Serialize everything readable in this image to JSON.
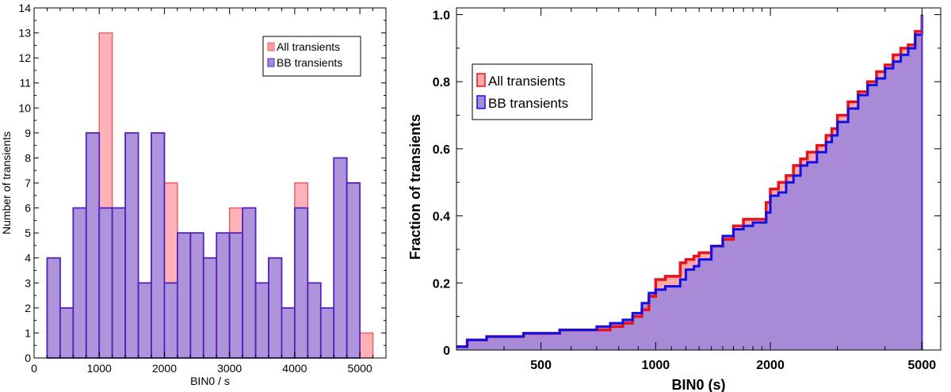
{
  "chart_data": [
    {
      "type": "bar",
      "title": "",
      "xlabel": "BIN0 / s",
      "ylabel": "Number of transients",
      "xlim": [
        0,
        5400
      ],
      "ylim": [
        0,
        14
      ],
      "bin_width": 200,
      "bin_starts": [
        200,
        400,
        600,
        800,
        1000,
        1200,
        1400,
        1600,
        1800,
        2000,
        2200,
        2400,
        2600,
        2800,
        3000,
        3200,
        3400,
        3600,
        3800,
        4000,
        4200,
        4400,
        4600,
        4800,
        5000
      ],
      "x_ticks": [
        "0",
        "1000",
        "2000",
        "3000",
        "4000",
        "5000"
      ],
      "y_ticks": [
        "0",
        "1",
        "2",
        "3",
        "4",
        "5",
        "6",
        "7",
        "8",
        "9",
        "10",
        "11",
        "12",
        "13",
        "14"
      ],
      "legend_position": "top-right",
      "series": [
        {
          "name": "All transients",
          "color": "#ff9aa2",
          "edge": "#ee6066",
          "values": [
            4,
            2,
            6,
            9,
            13,
            6,
            9,
            3,
            9,
            7,
            5,
            5,
            4,
            5,
            6,
            6,
            3,
            4,
            2,
            7,
            3,
            2,
            8,
            7,
            1
          ]
        },
        {
          "name": "BB transients",
          "color": "#9f8ee0",
          "edge": "#5522bb",
          "values": [
            4,
            2,
            6,
            9,
            6,
            6,
            9,
            3,
            9,
            3,
            5,
            5,
            4,
            5,
            5,
            6,
            3,
            4,
            2,
            6,
            3,
            2,
            8,
            7,
            0
          ]
        }
      ]
    },
    {
      "type": "line",
      "title": "",
      "xlabel": "BIN0 (s)",
      "ylabel": "Fraction of transients",
      "xscale": "log",
      "xlim": [
        300,
        5600
      ],
      "ylim": [
        0,
        1.02
      ],
      "x_ticks": [
        "500",
        "1000",
        "2000",
        "5000"
      ],
      "y_ticks": [
        "0",
        "0.2",
        "0.4",
        "0.6",
        "0.8",
        "1.0"
      ],
      "legend_position": "top-left",
      "series": [
        {
          "name": "All transients",
          "color": "#e8121a",
          "fill": "#ffaaaa",
          "x": [
            300,
            320,
            360,
            400,
            450,
            500,
            560,
            620,
            700,
            760,
            820,
            870,
            920,
            960,
            1000,
            1060,
            1100,
            1160,
            1200,
            1260,
            1300,
            1400,
            1500,
            1600,
            1700,
            1800,
            1900,
            1950,
            2000,
            2100,
            2200,
            2300,
            2400,
            2500,
            2650,
            2800,
            2900,
            3000,
            3200,
            3400,
            3600,
            3800,
            4000,
            4200,
            4400,
            4600,
            4800,
            5000
          ],
          "y": [
            0.01,
            0.03,
            0.04,
            0.04,
            0.05,
            0.05,
            0.06,
            0.06,
            0.06,
            0.07,
            0.08,
            0.1,
            0.12,
            0.16,
            0.21,
            0.22,
            0.22,
            0.26,
            0.27,
            0.28,
            0.29,
            0.31,
            0.33,
            0.37,
            0.39,
            0.39,
            0.39,
            0.44,
            0.48,
            0.5,
            0.52,
            0.55,
            0.57,
            0.59,
            0.61,
            0.64,
            0.66,
            0.7,
            0.74,
            0.77,
            0.8,
            0.83,
            0.85,
            0.88,
            0.9,
            0.91,
            0.95,
            1.0
          ]
        },
        {
          "name": "BB transients",
          "color": "#1010e6",
          "fill": "#a98ad6",
          "x": [
            300,
            320,
            360,
            400,
            450,
            500,
            560,
            620,
            700,
            760,
            820,
            870,
            920,
            960,
            1000,
            1060,
            1100,
            1160,
            1200,
            1260,
            1300,
            1400,
            1500,
            1600,
            1700,
            1800,
            1900,
            1950,
            2000,
            2100,
            2200,
            2300,
            2400,
            2500,
            2650,
            2800,
            2900,
            3000,
            3200,
            3400,
            3600,
            3800,
            4000,
            4200,
            4400,
            4600,
            4800,
            5000
          ],
          "y": [
            0.01,
            0.03,
            0.04,
            0.04,
            0.05,
            0.05,
            0.06,
            0.06,
            0.07,
            0.08,
            0.09,
            0.11,
            0.14,
            0.17,
            0.18,
            0.19,
            0.19,
            0.21,
            0.24,
            0.25,
            0.27,
            0.31,
            0.34,
            0.36,
            0.37,
            0.38,
            0.38,
            0.41,
            0.46,
            0.47,
            0.5,
            0.52,
            0.55,
            0.56,
            0.59,
            0.62,
            0.64,
            0.68,
            0.72,
            0.76,
            0.79,
            0.81,
            0.84,
            0.86,
            0.88,
            0.9,
            0.94,
            1.0
          ]
        }
      ]
    }
  ]
}
